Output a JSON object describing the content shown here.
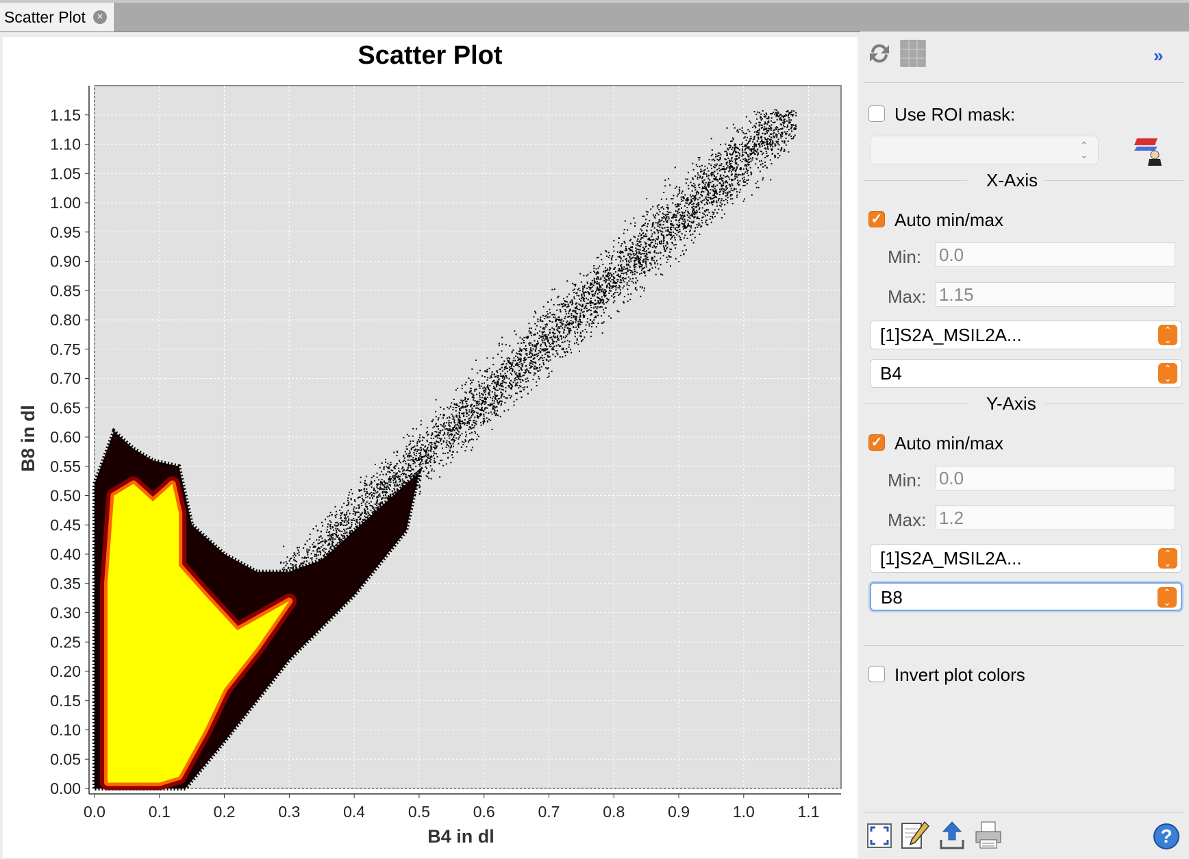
{
  "tab": {
    "title": "Scatter Plot",
    "close_glyph": "×"
  },
  "chart_data": {
    "type": "scatter",
    "title": "Scatter Plot",
    "xlabel": "B4 in dl",
    "ylabel": "B8 in dl",
    "xlim": [
      0.0,
      1.15
    ],
    "ylim": [
      0.0,
      1.2
    ],
    "x_ticks": [
      "0.0",
      "0.1",
      "0.2",
      "0.3",
      "0.4",
      "0.5",
      "0.6",
      "0.7",
      "0.8",
      "0.9",
      "1.0",
      "1.1"
    ],
    "y_ticks": [
      "0.00",
      "0.05",
      "0.10",
      "0.15",
      "0.20",
      "0.25",
      "0.30",
      "0.35",
      "0.40",
      "0.45",
      "0.50",
      "0.55",
      "0.60",
      "0.65",
      "0.70",
      "0.75",
      "0.80",
      "0.85",
      "0.90",
      "0.95",
      "1.00",
      "1.05",
      "1.10",
      "1.15"
    ],
    "grid": true,
    "background": "#e1e1e1",
    "density_colors": {
      "high": "#ffff00",
      "mid": "#ff6600",
      "low": "#8b0000",
      "sparse": "#000000"
    },
    "density_regions": [
      {
        "level": "high",
        "outline": [
          [
            0.02,
            0.01
          ],
          [
            0.02,
            0.35
          ],
          [
            0.03,
            0.5
          ],
          [
            0.06,
            0.52
          ],
          [
            0.09,
            0.49
          ],
          [
            0.12,
            0.52
          ],
          [
            0.13,
            0.47
          ],
          [
            0.13,
            0.38
          ],
          [
            0.17,
            0.33
          ],
          [
            0.22,
            0.27
          ],
          [
            0.3,
            0.32
          ],
          [
            0.25,
            0.24
          ],
          [
            0.2,
            0.17
          ],
          [
            0.17,
            0.1
          ],
          [
            0.13,
            0.02
          ],
          [
            0.1,
            0.01
          ]
        ]
      },
      {
        "level": "low",
        "outline": [
          [
            0.0,
            0.0
          ],
          [
            0.0,
            0.52
          ],
          [
            0.03,
            0.61
          ],
          [
            0.06,
            0.58
          ],
          [
            0.09,
            0.56
          ],
          [
            0.13,
            0.55
          ],
          [
            0.15,
            0.45
          ],
          [
            0.2,
            0.4
          ],
          [
            0.25,
            0.37
          ],
          [
            0.3,
            0.37
          ],
          [
            0.35,
            0.39
          ],
          [
            0.42,
            0.46
          ],
          [
            0.5,
            0.54
          ],
          [
            0.48,
            0.44
          ],
          [
            0.4,
            0.33
          ],
          [
            0.3,
            0.22
          ],
          [
            0.2,
            0.08
          ],
          [
            0.14,
            0.0
          ]
        ]
      }
    ],
    "trend_cloud": {
      "x_range": [
        0.2,
        1.08
      ],
      "slope": 1.03,
      "intercept": 0.05,
      "spread": 0.06
    }
  },
  "side_panel": {
    "toolbar_icons": [
      "refresh-icon",
      "grid-table-icon"
    ],
    "collapse_glyph": "»",
    "roi": {
      "label": "Use ROI mask:",
      "checked": false,
      "value": ""
    },
    "x_axis": {
      "header": "X-Axis",
      "auto_label": "Auto min/max",
      "auto_checked": true,
      "min_label": "Min:",
      "min_value": "0.0",
      "max_label": "Max:",
      "max_value": "1.15",
      "product": "[1]S2A_MSIL2A...",
      "band": "B4"
    },
    "y_axis": {
      "header": "Y-Axis",
      "auto_label": "Auto min/max",
      "auto_checked": true,
      "min_label": "Min:",
      "min_value": "0.0",
      "max_label": "Max:",
      "max_value": "1.2",
      "product": "[1]S2A_MSIL2A...",
      "band": "B8"
    },
    "invert": {
      "label": "Invert plot colors",
      "checked": false
    },
    "bottom_icons": [
      "zoom-all-icon",
      "edit-icon",
      "export-icon",
      "print-icon"
    ],
    "help_glyph": "?"
  }
}
